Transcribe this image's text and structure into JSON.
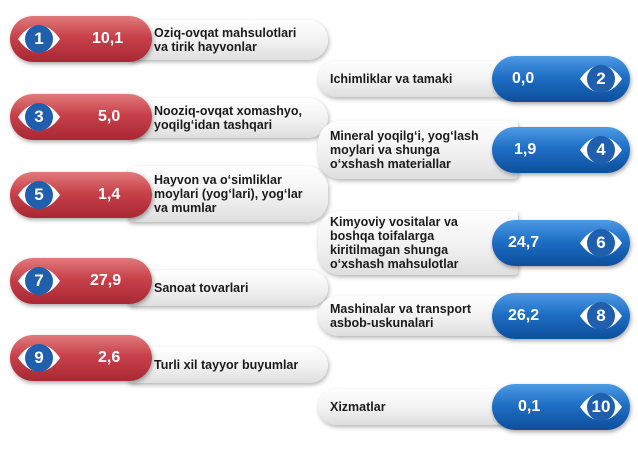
{
  "items": [
    {
      "num": "1",
      "value": "10,1",
      "label": "Oziq-ovqat mahsulotlari\n va tirik hayvonlar"
    },
    {
      "num": "2",
      "value": "0,0",
      "label": "Ichimliklar va tamaki"
    },
    {
      "num": "3",
      "value": "5,0",
      "label": "Nooziq-ovqat xomashyo,\n yoqilg‘idan tashqari"
    },
    {
      "num": "4",
      "value": "1,9",
      "label": "Mineral yoqilg‘i, yog‘lash\n moylari va shunga\n o‘xshash materiallar"
    },
    {
      "num": "5",
      "value": "1,4",
      "label": "Hayvon va o‘simliklar\n moylari (yog‘lari), yog‘lar\n va mumlar"
    },
    {
      "num": "6",
      "value": "24,7",
      "label": "Kimyoviy vositalar va\n boshqa toifalarga\n kiritilmagan shunga\n o‘xshash mahsulotlar"
    },
    {
      "num": "7",
      "value": "27,9",
      "label": "Sanoat tovarlari"
    },
    {
      "num": "8",
      "value": "26,2",
      "label": "Mashinalar va transport\n asbob-uskunalari"
    },
    {
      "num": "9",
      "value": "2,6",
      "label": "Turli xil tayyor buyumlar"
    },
    {
      "num": "10",
      "value": "0,1",
      "label": "Xizmatlar"
    }
  ],
  "colors": {
    "left_accent": "#c8414a",
    "right_accent": "#1f6fc6",
    "badge_left": "#1f5fae",
    "badge_right": "#1f5fae"
  }
}
